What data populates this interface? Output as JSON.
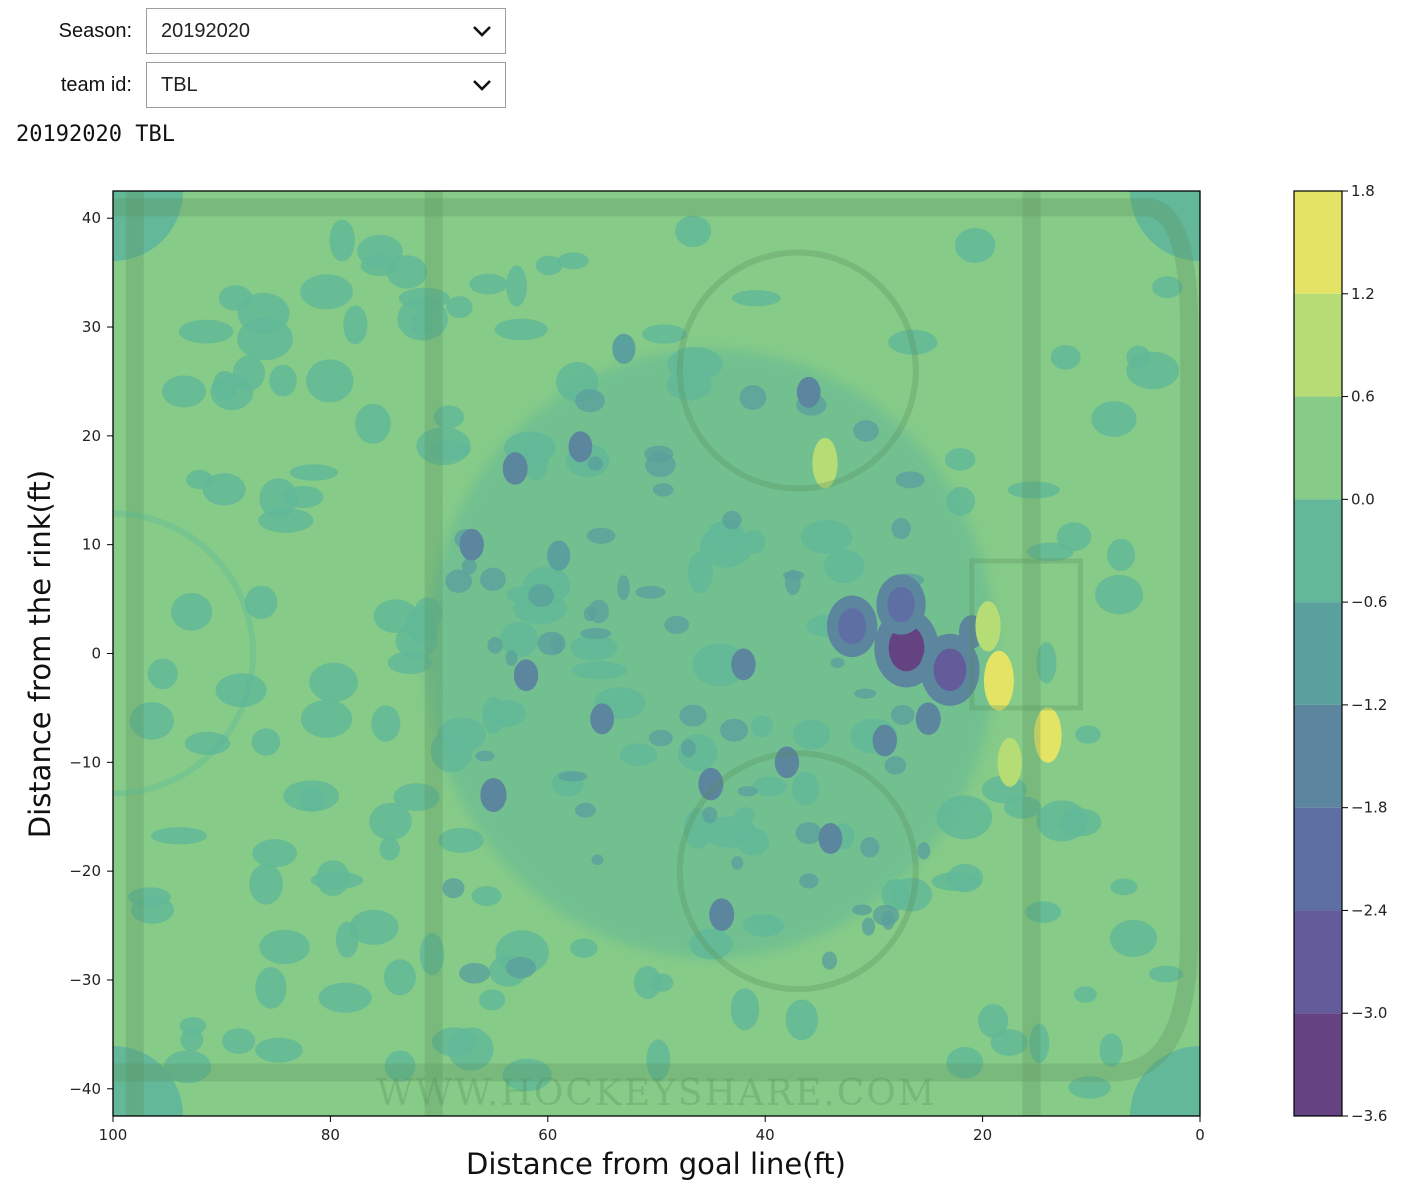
{
  "widgets": {
    "season": {
      "label": "Season:",
      "value": "20192020"
    },
    "team": {
      "label": "team id:",
      "value": "TBL"
    }
  },
  "output_text": "20192020 TBL",
  "chart_data": {
    "type": "heatmap",
    "title": "",
    "xlabel": "Distance from goal line(ft)",
    "ylabel": "Distance from the rink(ft)",
    "xlim": [
      100,
      0
    ],
    "ylim": [
      -42.5,
      42.5
    ],
    "x_ticks": [
      100,
      80,
      60,
      40,
      20,
      0
    ],
    "y_ticks": [
      40,
      30,
      20,
      10,
      0,
      -10,
      -20,
      -30,
      -40
    ],
    "colorbar": {
      "ticks": [
        1.8,
        1.2,
        0.6,
        0.0,
        -0.6,
        -1.2,
        -1.8,
        -2.4,
        -3.0,
        -3.6
      ],
      "tick_labels": [
        "1.8",
        "1.2",
        "0.6",
        "0.0",
        "−0.6",
        "−1.2",
        "−1.8",
        "−2.4",
        "−3.0",
        "−3.6"
      ],
      "levels": [
        {
          "min": 1.2,
          "max": 1.8,
          "color": "#e3e466"
        },
        {
          "min": 0.6,
          "max": 1.2,
          "color": "#b6dc75"
        },
        {
          "min": 0.0,
          "max": 0.6,
          "color": "#86cb88"
        },
        {
          "min": -0.6,
          "max": 0.0,
          "color": "#62b898"
        },
        {
          "min": -1.2,
          "max": -0.6,
          "color": "#5aa09c"
        },
        {
          "min": -1.8,
          "max": -1.2,
          "color": "#5b869e"
        },
        {
          "min": -2.4,
          "max": -1.8,
          "color": "#5e6fa3"
        },
        {
          "min": -3.0,
          "max": -2.4,
          "color": "#645c9a"
        },
        {
          "min": -3.6,
          "max": -3.0,
          "color": "#654383"
        }
      ]
    },
    "blobs": [
      {
        "x": 27,
        "y": 0.5,
        "v": -3.3
      },
      {
        "x": 23,
        "y": -1.5,
        "v": -2.8
      },
      {
        "x": 32,
        "y": 2.5,
        "v": -2.0
      },
      {
        "x": 27.5,
        "y": 4.5,
        "v": -1.9
      },
      {
        "x": 21,
        "y": 2,
        "v": -1.6
      },
      {
        "x": 25,
        "y": -6,
        "v": -1.5
      },
      {
        "x": 29,
        "y": -8,
        "v": -1.4
      },
      {
        "x": 45,
        "y": -12,
        "v": -1.5
      },
      {
        "x": 65,
        "y": -13,
        "v": -1.7
      },
      {
        "x": 62,
        "y": -2,
        "v": -1.4
      },
      {
        "x": 67,
        "y": 10,
        "v": -1.4
      },
      {
        "x": 63,
        "y": 17,
        "v": -1.5
      },
      {
        "x": 44,
        "y": -24,
        "v": -1.5
      },
      {
        "x": 57,
        "y": 19,
        "v": -1.3
      },
      {
        "x": 53,
        "y": 28,
        "v": -1.2
      },
      {
        "x": 36,
        "y": 24,
        "v": -1.3
      },
      {
        "x": 42,
        "y": -1,
        "v": -1.4
      },
      {
        "x": 38,
        "y": -10,
        "v": -1.4
      },
      {
        "x": 34,
        "y": -17,
        "v": -1.3
      },
      {
        "x": 55,
        "y": -6,
        "v": -1.3
      },
      {
        "x": 59,
        "y": 9,
        "v": -1.2
      },
      {
        "x": 18.5,
        "y": -2.5,
        "v": 1.5
      },
      {
        "x": 14,
        "y": -7.5,
        "v": 1.2
      },
      {
        "x": 19.5,
        "y": 2.5,
        "v": 0.9
      },
      {
        "x": 17.5,
        "y": -10,
        "v": 0.8
      },
      {
        "x": 34.5,
        "y": 17.5,
        "v": 0.9
      }
    ],
    "background": {
      "level_color": "#86cb88",
      "mid_color": "#62b898",
      "edge_color": "#62b898"
    },
    "watermark": "WWW.HOCKEYSHARE.COM"
  }
}
